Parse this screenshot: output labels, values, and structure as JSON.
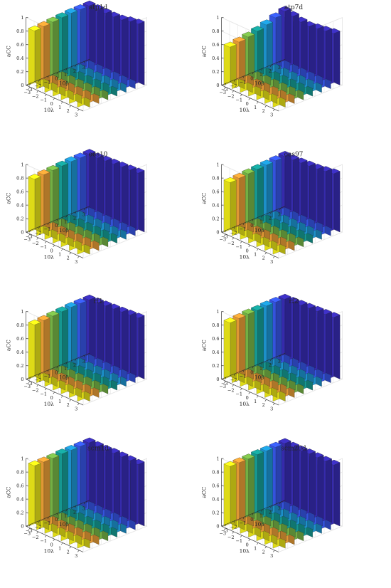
{
  "figure": {
    "common": {
      "x_ticks": [
        "3",
        "2",
        "1",
        "0",
        "−1",
        "−2",
        "−3"
      ],
      "y_ticks": [
        "−3",
        "−2",
        "−1",
        "0",
        "1",
        "2",
        "3"
      ],
      "z_ticks": [
        "0",
        "0.2",
        "0.4",
        "0.6",
        "0.8",
        "1"
      ],
      "x_label": "10λ",
      "y_label": "10β",
      "z_label": "aCC",
      "zlim": [
        0,
        1
      ]
    },
    "colors": {
      "gradient": [
        "#f7f21a",
        "#f9a83a",
        "#7fc24c",
        "#17a8a0",
        "#1fa0e0",
        "#3a5cf5",
        "#3b2fbf"
      ],
      "axis": "#262626",
      "grid": "#e6e6e6",
      "edge": "#1a1a1a"
    }
  },
  "chart_data": [
    {
      "type": "bar3d",
      "title": "atp1d",
      "xlabel": "10λ",
      "ylabel": "10β",
      "zlabel": "aCC",
      "zlim": [
        0,
        1
      ],
      "rows": [
        "3",
        "2",
        "1",
        "0",
        "−1",
        "−2",
        "−3"
      ],
      "cols": [
        "−3",
        "−2",
        "−1",
        "0",
        "1",
        "2",
        "3"
      ],
      "values": [
        [
          0.9,
          0.91,
          0.92,
          0.93,
          0.95,
          0.96,
          0.94
        ],
        [
          0.89,
          0.9,
          0.91,
          0.92,
          0.93,
          0.93,
          0.92
        ],
        [
          0.88,
          0.89,
          0.9,
          0.91,
          0.91,
          0.9,
          0.89
        ],
        [
          0.87,
          0.88,
          0.89,
          0.89,
          0.89,
          0.88,
          0.88
        ],
        [
          0.86,
          0.87,
          0.88,
          0.88,
          0.88,
          0.88,
          0.88
        ],
        [
          0.85,
          0.86,
          0.87,
          0.88,
          0.88,
          0.88,
          0.88
        ],
        [
          0.84,
          0.85,
          0.86,
          0.87,
          0.88,
          0.88,
          0.88
        ]
      ]
    },
    {
      "type": "bar3d",
      "title": "atp7d",
      "xlabel": "10λ",
      "ylabel": "10β",
      "zlabel": "aCC",
      "zlim": [
        0,
        1
      ],
      "rows": [
        "3",
        "2",
        "1",
        "0",
        "−1",
        "−2",
        "−3"
      ],
      "cols": [
        "−3",
        "−2",
        "−1",
        "0",
        "1",
        "2",
        "3"
      ],
      "values": [
        [
          0.7,
          0.72,
          0.74,
          0.78,
          0.82,
          0.86,
          0.8
        ],
        [
          0.71,
          0.72,
          0.74,
          0.76,
          0.8,
          0.84,
          0.78
        ],
        [
          0.7,
          0.71,
          0.72,
          0.74,
          0.76,
          0.78,
          0.76
        ],
        [
          0.69,
          0.7,
          0.71,
          0.72,
          0.74,
          0.75,
          0.74
        ],
        [
          0.66,
          0.67,
          0.68,
          0.7,
          0.72,
          0.74,
          0.75
        ],
        [
          0.63,
          0.64,
          0.66,
          0.68,
          0.71,
          0.75,
          0.78
        ],
        [
          0.6,
          0.62,
          0.64,
          0.67,
          0.71,
          0.76,
          0.8
        ]
      ]
    },
    {
      "type": "bar3d",
      "title": "oes10",
      "xlabel": "10λ",
      "ylabel": "10β",
      "zlabel": "aCC",
      "zlim": [
        0,
        1
      ],
      "rows": [
        "3",
        "2",
        "1",
        "0",
        "−1",
        "−2",
        "−3"
      ],
      "cols": [
        "−3",
        "−2",
        "−1",
        "0",
        "1",
        "2",
        "3"
      ],
      "values": [
        [
          0.88,
          0.89,
          0.9,
          0.91,
          0.92,
          0.93,
          0.91
        ],
        [
          0.87,
          0.88,
          0.89,
          0.9,
          0.91,
          0.92,
          0.9
        ],
        [
          0.86,
          0.87,
          0.88,
          0.89,
          0.9,
          0.9,
          0.89
        ],
        [
          0.85,
          0.86,
          0.87,
          0.88,
          0.88,
          0.88,
          0.88
        ],
        [
          0.84,
          0.85,
          0.86,
          0.87,
          0.87,
          0.87,
          0.87
        ],
        [
          0.83,
          0.84,
          0.85,
          0.86,
          0.86,
          0.86,
          0.86
        ],
        [
          0.82,
          0.83,
          0.84,
          0.85,
          0.86,
          0.86,
          0.86
        ]
      ]
    },
    {
      "type": "bar3d",
      "title": "oes97",
      "xlabel": "10λ",
      "ylabel": "10β",
      "zlabel": "aCC",
      "zlim": [
        0,
        1
      ],
      "rows": [
        "3",
        "2",
        "1",
        "0",
        "−1",
        "−2",
        "−3"
      ],
      "cols": [
        "−3",
        "−2",
        "−1",
        "0",
        "1",
        "2",
        "3"
      ],
      "values": [
        [
          0.86,
          0.87,
          0.88,
          0.89,
          0.9,
          0.92,
          0.9
        ],
        [
          0.84,
          0.85,
          0.86,
          0.87,
          0.88,
          0.9,
          0.88
        ],
        [
          0.82,
          0.83,
          0.84,
          0.85,
          0.86,
          0.87,
          0.86
        ],
        [
          0.8,
          0.81,
          0.82,
          0.83,
          0.84,
          0.85,
          0.85
        ],
        [
          0.79,
          0.8,
          0.81,
          0.82,
          0.83,
          0.84,
          0.84
        ],
        [
          0.78,
          0.79,
          0.8,
          0.81,
          0.82,
          0.83,
          0.83
        ],
        [
          0.77,
          0.78,
          0.79,
          0.8,
          0.81,
          0.82,
          0.83
        ]
      ]
    },
    {
      "type": "bar3d",
      "title": "rf1",
      "xlabel": "10λ",
      "ylabel": "10β",
      "zlabel": "aCC",
      "zlim": [
        0,
        1
      ],
      "rows": [
        "3",
        "2",
        "1",
        "0",
        "−1",
        "−2",
        "−3"
      ],
      "cols": [
        "−3",
        "−2",
        "−1",
        "0",
        "1",
        "2",
        "3"
      ],
      "values": [
        [
          0.9,
          0.91,
          0.92,
          0.93,
          0.94,
          0.95,
          0.94
        ],
        [
          0.89,
          0.9,
          0.91,
          0.92,
          0.93,
          0.93,
          0.93
        ],
        [
          0.88,
          0.89,
          0.9,
          0.91,
          0.92,
          0.92,
          0.92
        ],
        [
          0.87,
          0.88,
          0.89,
          0.9,
          0.91,
          0.91,
          0.91
        ],
        [
          0.86,
          0.87,
          0.88,
          0.89,
          0.9,
          0.9,
          0.9
        ],
        [
          0.85,
          0.86,
          0.87,
          0.88,
          0.89,
          0.89,
          0.89
        ],
        [
          0.84,
          0.85,
          0.86,
          0.87,
          0.88,
          0.88,
          0.88
        ]
      ]
    },
    {
      "type": "bar3d",
      "title": "rf2",
      "xlabel": "10λ",
      "ylabel": "10β",
      "zlabel": "aCC",
      "zlim": [
        0,
        1
      ],
      "rows": [
        "3",
        "2",
        "1",
        "0",
        "−1",
        "−2",
        "−3"
      ],
      "cols": [
        "−3",
        "−2",
        "−1",
        "0",
        "1",
        "2",
        "3"
      ],
      "values": [
        [
          0.92,
          0.93,
          0.94,
          0.95,
          0.96,
          0.96,
          0.95
        ],
        [
          0.92,
          0.93,
          0.93,
          0.94,
          0.95,
          0.95,
          0.94
        ],
        [
          0.91,
          0.92,
          0.93,
          0.93,
          0.94,
          0.94,
          0.93
        ],
        [
          0.9,
          0.91,
          0.92,
          0.92,
          0.93,
          0.93,
          0.92
        ],
        [
          0.89,
          0.9,
          0.91,
          0.91,
          0.92,
          0.92,
          0.91
        ],
        [
          0.88,
          0.89,
          0.9,
          0.9,
          0.91,
          0.91,
          0.9
        ],
        [
          0.87,
          0.88,
          0.89,
          0.89,
          0.9,
          0.9,
          0.89
        ]
      ]
    },
    {
      "type": "bar3d",
      "title": "scm1d",
      "xlabel": "10λ",
      "ylabel": "10β",
      "zlabel": "aCC",
      "zlim": [
        0,
        1
      ],
      "rows": [
        "3",
        "2",
        "1",
        "0",
        "−1",
        "−2",
        "−3"
      ],
      "cols": [
        "−3",
        "−2",
        "−1",
        "0",
        "1",
        "2",
        "3"
      ],
      "values": [
        [
          0.95,
          0.95,
          0.95,
          0.95,
          0.95,
          0.95,
          0.95
        ],
        [
          0.95,
          0.95,
          0.95,
          0.95,
          0.95,
          0.95,
          0.95
        ],
        [
          0.94,
          0.94,
          0.95,
          0.95,
          0.95,
          0.95,
          0.95
        ],
        [
          0.94,
          0.94,
          0.94,
          0.95,
          0.95,
          0.95,
          0.95
        ],
        [
          0.94,
          0.94,
          0.94,
          0.94,
          0.94,
          0.94,
          0.94
        ],
        [
          0.93,
          0.93,
          0.94,
          0.94,
          0.94,
          0.94,
          0.94
        ],
        [
          0.93,
          0.93,
          0.93,
          0.94,
          0.94,
          0.94,
          0.94
        ]
      ]
    },
    {
      "type": "bar3d",
      "title": "scm20d",
      "xlabel": "10λ",
      "ylabel": "10β",
      "zlabel": "aCC",
      "zlim": [
        0,
        1
      ],
      "rows": [
        "3",
        "2",
        "1",
        "0",
        "−1",
        "−2",
        "−3"
      ],
      "cols": [
        "−3",
        "−2",
        "−1",
        "0",
        "1",
        "2",
        "3"
      ],
      "values": [
        [
          0.94,
          0.94,
          0.94,
          0.94,
          0.94,
          0.94,
          0.94
        ],
        [
          0.94,
          0.94,
          0.94,
          0.94,
          0.94,
          0.94,
          0.94
        ],
        [
          0.93,
          0.93,
          0.94,
          0.94,
          0.94,
          0.94,
          0.94
        ],
        [
          0.93,
          0.93,
          0.93,
          0.94,
          0.94,
          0.94,
          0.94
        ],
        [
          0.93,
          0.93,
          0.93,
          0.93,
          0.93,
          0.93,
          0.93
        ],
        [
          0.92,
          0.92,
          0.93,
          0.93,
          0.93,
          0.93,
          0.93
        ],
        [
          0.92,
          0.92,
          0.92,
          0.93,
          0.93,
          0.93,
          0.93
        ]
      ]
    }
  ]
}
